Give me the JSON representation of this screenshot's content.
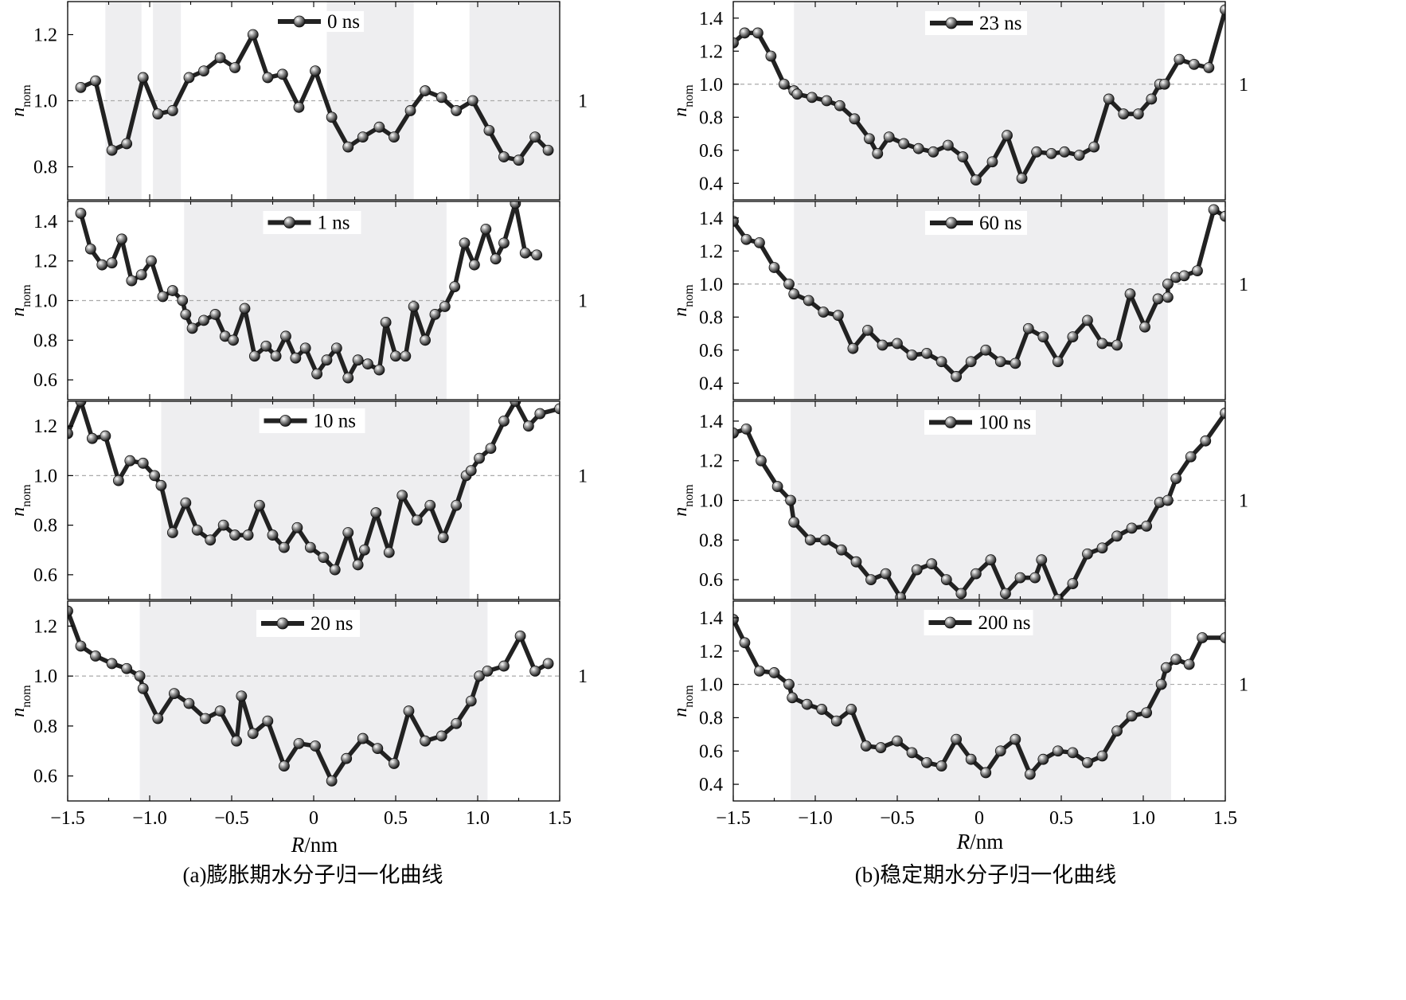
{
  "colors": {
    "line": "#222222",
    "shade": "#eeeef0",
    "reference": "#aaaaaa",
    "axis": "#000000"
  },
  "ref_label": "1",
  "ylabel_main": "n",
  "ylabel_sub": "nom",
  "columns": [
    {
      "caption": "(a)膨胀期水分子归一化曲线",
      "xlabel_italic": "R",
      "xlabel_unit": "/nm",
      "x_ticks": [
        "−1.5",
        "−1.0",
        "−0.5",
        "0",
        "0.5",
        "1.0",
        "1.5"
      ]
    },
    {
      "caption": "(b)稳定期水分子归一化曲线",
      "xlabel_italic": "R",
      "xlabel_unit": "/nm",
      "x_ticks": [
        "−1.5",
        "−1.0",
        "−0.5",
        "0",
        "0.5",
        "1.0",
        "1.5"
      ]
    }
  ],
  "chart_data": [
    {
      "type": "line",
      "column": 0,
      "row": 0,
      "legend": "0 ns",
      "xlim": [
        -1.5,
        1.5
      ],
      "ylim": [
        0.7,
        1.3
      ],
      "y_ticks": [
        0.8,
        1.0,
        1.2
      ],
      "y_tick_labels": [
        "0.8",
        "1.0",
        "1.2"
      ],
      "reference_y": 1.0,
      "shaded_x_ranges": [
        [
          -1.27,
          -1.05
        ],
        [
          -0.98,
          -0.81
        ],
        [
          0.08,
          0.61
        ],
        [
          0.95,
          1.5
        ]
      ],
      "x": [
        -1.42,
        -1.33,
        -1.23,
        -1.14,
        -1.04,
        -0.95,
        -0.86,
        -0.76,
        -0.67,
        -0.57,
        -0.48,
        -0.37,
        -0.28,
        -0.19,
        -0.09,
        0.01,
        0.11,
        0.21,
        0.3,
        0.4,
        0.49,
        0.59,
        0.68,
        0.78,
        0.87,
        0.97,
        1.07,
        1.16,
        1.25,
        1.35,
        1.43
      ],
      "y": [
        1.04,
        1.06,
        0.85,
        0.87,
        1.07,
        0.96,
        0.97,
        1.07,
        1.09,
        1.13,
        1.1,
        1.2,
        1.07,
        1.08,
        0.98,
        1.09,
        0.95,
        0.86,
        0.89,
        0.92,
        0.89,
        0.97,
        1.03,
        1.01,
        0.97,
        1.0,
        0.91,
        0.83,
        0.82,
        0.89,
        0.85
      ]
    },
    {
      "type": "line",
      "column": 0,
      "row": 1,
      "legend": "1 ns",
      "xlim": [
        -1.5,
        1.5
      ],
      "ylim": [
        0.5,
        1.5
      ],
      "y_ticks": [
        0.6,
        0.8,
        1.0,
        1.2,
        1.4
      ],
      "y_tick_labels": [
        "0.6",
        "0.8",
        "1.0",
        "1.2",
        "1.4"
      ],
      "reference_y": 1.0,
      "shaded_x_ranges": [
        [
          -0.79,
          0.81
        ]
      ],
      "x": [
        -1.42,
        -1.36,
        -1.29,
        -1.23,
        -1.17,
        -1.11,
        -1.05,
        -0.99,
        -0.92,
        -0.86,
        -0.8,
        -0.78,
        -0.74,
        -0.67,
        -0.6,
        -0.54,
        -0.49,
        -0.42,
        -0.36,
        -0.29,
        -0.23,
        -0.17,
        -0.11,
        -0.05,
        0.02,
        0.08,
        0.14,
        0.21,
        0.27,
        0.33,
        0.4,
        0.44,
        0.5,
        0.56,
        0.61,
        0.68,
        0.74,
        0.8,
        0.86,
        0.92,
        0.98,
        1.05,
        1.11,
        1.16,
        1.23,
        1.29,
        1.36
      ],
      "y": [
        1.44,
        1.26,
        1.18,
        1.19,
        1.31,
        1.1,
        1.13,
        1.2,
        1.02,
        1.05,
        1.0,
        0.93,
        0.86,
        0.9,
        0.93,
        0.82,
        0.8,
        0.96,
        0.72,
        0.77,
        0.72,
        0.82,
        0.71,
        0.76,
        0.63,
        0.7,
        0.76,
        0.61,
        0.7,
        0.68,
        0.65,
        0.89,
        0.72,
        0.72,
        0.97,
        0.8,
        0.93,
        0.97,
        1.07,
        1.29,
        1.18,
        1.36,
        1.21,
        1.29,
        1.49,
        1.24,
        1.23
      ]
    },
    {
      "type": "line",
      "column": 0,
      "row": 2,
      "legend": "10 ns",
      "xlim": [
        -1.5,
        1.5
      ],
      "ylim": [
        0.5,
        1.3
      ],
      "y_ticks": [
        0.6,
        0.8,
        1.0,
        1.2
      ],
      "y_tick_labels": [
        "0.6",
        "0.8",
        "1.0",
        "1.2"
      ],
      "reference_y": 1.0,
      "shaded_x_ranges": [
        [
          -0.93,
          0.95
        ]
      ],
      "x": [
        -1.5,
        -1.42,
        -1.35,
        -1.27,
        -1.19,
        -1.12,
        -1.04,
        -0.97,
        -0.93,
        -0.86,
        -0.78,
        -0.71,
        -0.63,
        -0.55,
        -0.48,
        -0.4,
        -0.33,
        -0.25,
        -0.18,
        -0.1,
        -0.02,
        0.06,
        0.13,
        0.21,
        0.27,
        0.31,
        0.38,
        0.46,
        0.54,
        0.63,
        0.71,
        0.79,
        0.87,
        0.93,
        0.96,
        1.01,
        1.08,
        1.16,
        1.23,
        1.31,
        1.38,
        1.5
      ],
      "y": [
        1.17,
        1.3,
        1.15,
        1.16,
        0.98,
        1.06,
        1.05,
        1.0,
        0.96,
        0.77,
        0.89,
        0.78,
        0.74,
        0.8,
        0.76,
        0.76,
        0.88,
        0.76,
        0.71,
        0.79,
        0.71,
        0.67,
        0.62,
        0.77,
        0.64,
        0.7,
        0.85,
        0.69,
        0.92,
        0.82,
        0.88,
        0.75,
        0.88,
        1.0,
        1.02,
        1.07,
        1.11,
        1.22,
        1.3,
        1.2,
        1.25,
        1.27
      ]
    },
    {
      "type": "line",
      "column": 0,
      "row": 3,
      "legend": "20 ns",
      "xlim": [
        -1.5,
        1.5
      ],
      "ylim": [
        0.5,
        1.3
      ],
      "y_ticks": [
        0.6,
        0.8,
        1.0,
        1.2
      ],
      "y_tick_labels": [
        "0.6",
        "0.8",
        "1.0",
        "1.2"
      ],
      "reference_y": 1.0,
      "shaded_x_ranges": [
        [
          -1.06,
          1.06
        ]
      ],
      "x": [
        -1.5,
        -1.42,
        -1.33,
        -1.23,
        -1.14,
        -1.06,
        -1.04,
        -0.95,
        -0.85,
        -0.76,
        -0.66,
        -0.57,
        -0.47,
        -0.44,
        -0.37,
        -0.28,
        -0.18,
        -0.09,
        0.01,
        0.11,
        0.2,
        0.3,
        0.39,
        0.49,
        0.58,
        0.68,
        0.78,
        0.87,
        0.96,
        1.01,
        1.06,
        1.16,
        1.26,
        1.35,
        1.43
      ],
      "y": [
        1.26,
        1.12,
        1.08,
        1.05,
        1.03,
        1.0,
        0.95,
        0.83,
        0.93,
        0.89,
        0.83,
        0.86,
        0.74,
        0.92,
        0.77,
        0.82,
        0.64,
        0.73,
        0.72,
        0.58,
        0.67,
        0.75,
        0.71,
        0.65,
        0.86,
        0.74,
        0.76,
        0.81,
        0.9,
        1.0,
        1.02,
        1.04,
        1.16,
        1.02,
        1.05
      ]
    },
    {
      "type": "line",
      "column": 1,
      "row": 0,
      "legend": "23 ns",
      "xlim": [
        -1.5,
        1.5
      ],
      "ylim": [
        0.3,
        1.5
      ],
      "y_ticks": [
        0.4,
        0.6,
        0.8,
        1.0,
        1.2,
        1.4
      ],
      "y_tick_labels": [
        "0.4",
        "0.6",
        "0.8",
        "1.0",
        "1.2",
        "1.4"
      ],
      "reference_y": 1.0,
      "shaded_x_ranges": [
        [
          -1.13,
          1.13
        ]
      ],
      "x": [
        -1.5,
        -1.43,
        -1.35,
        -1.27,
        -1.19,
        -1.13,
        -1.11,
        -1.02,
        -0.93,
        -0.85,
        -0.76,
        -0.67,
        -0.62,
        -0.55,
        -0.46,
        -0.37,
        -0.28,
        -0.19,
        -0.1,
        -0.02,
        0.08,
        0.17,
        0.26,
        0.35,
        0.44,
        0.52,
        0.61,
        0.7,
        0.79,
        0.88,
        0.97,
        1.05,
        1.1,
        1.13,
        1.22,
        1.31,
        1.4,
        1.5
      ],
      "y": [
        1.25,
        1.31,
        1.31,
        1.17,
        1.0,
        0.96,
        0.94,
        0.92,
        0.9,
        0.87,
        0.79,
        0.67,
        0.58,
        0.68,
        0.64,
        0.61,
        0.59,
        0.63,
        0.56,
        0.42,
        0.53,
        0.69,
        0.43,
        0.59,
        0.58,
        0.59,
        0.57,
        0.62,
        0.91,
        0.82,
        0.82,
        0.91,
        1.0,
        1.0,
        1.15,
        1.12,
        1.1,
        1.45
      ]
    },
    {
      "type": "line",
      "column": 1,
      "row": 1,
      "legend": "60 ns",
      "xlim": [
        -1.5,
        1.5
      ],
      "ylim": [
        0.3,
        1.5
      ],
      "y_ticks": [
        0.4,
        0.6,
        0.8,
        1.0,
        1.2,
        1.4
      ],
      "y_tick_labels": [
        "0.4",
        "0.6",
        "0.8",
        "1.0",
        "1.2",
        "1.4"
      ],
      "reference_y": 1.0,
      "shaded_x_ranges": [
        [
          -1.13,
          1.15
        ]
      ],
      "x": [
        -1.5,
        -1.42,
        -1.34,
        -1.25,
        -1.16,
        -1.13,
        -1.04,
        -0.95,
        -0.86,
        -0.77,
        -0.68,
        -0.59,
        -0.5,
        -0.41,
        -0.32,
        -0.23,
        -0.14,
        -0.05,
        0.04,
        0.13,
        0.22,
        0.3,
        0.39,
        0.48,
        0.57,
        0.66,
        0.75,
        0.84,
        0.92,
        1.01,
        1.09,
        1.15,
        1.15,
        1.2,
        1.25,
        1.33,
        1.43,
        1.5
      ],
      "y": [
        1.38,
        1.27,
        1.25,
        1.1,
        1.0,
        0.94,
        0.9,
        0.83,
        0.81,
        0.61,
        0.72,
        0.63,
        0.64,
        0.57,
        0.58,
        0.53,
        0.44,
        0.53,
        0.6,
        0.53,
        0.52,
        0.73,
        0.68,
        0.53,
        0.68,
        0.78,
        0.64,
        0.63,
        0.94,
        0.74,
        0.91,
        0.92,
        1.0,
        1.04,
        1.05,
        1.08,
        1.45,
        1.41
      ]
    },
    {
      "type": "line",
      "column": 1,
      "row": 2,
      "legend": "100 ns",
      "xlim": [
        -1.5,
        1.5
      ],
      "ylim": [
        0.5,
        1.5
      ],
      "y_ticks": [
        0.6,
        0.8,
        1.0,
        1.2,
        1.4
      ],
      "y_tick_labels": [
        "0.6",
        "0.8",
        "1.0",
        "1.2",
        "1.4"
      ],
      "reference_y": 1.0,
      "shaded_x_ranges": [
        [
          -1.15,
          1.15
        ]
      ],
      "x": [
        -1.5,
        -1.42,
        -1.33,
        -1.23,
        -1.15,
        -1.13,
        -1.03,
        -0.94,
        -0.84,
        -0.75,
        -0.66,
        -0.57,
        -0.48,
        -0.38,
        -0.29,
        -0.2,
        -0.11,
        -0.02,
        0.07,
        0.16,
        0.25,
        0.34,
        0.38,
        0.48,
        0.57,
        0.66,
        0.75,
        0.84,
        0.93,
        1.02,
        1.1,
        1.15,
        1.2,
        1.29,
        1.38,
        1.5
      ],
      "y": [
        1.34,
        1.36,
        1.2,
        1.07,
        1.0,
        0.89,
        0.8,
        0.8,
        0.75,
        0.69,
        0.6,
        0.63,
        0.51,
        0.65,
        0.68,
        0.6,
        0.53,
        0.63,
        0.7,
        0.53,
        0.61,
        0.61,
        0.7,
        0.5,
        0.58,
        0.73,
        0.76,
        0.82,
        0.86,
        0.87,
        0.99,
        1.0,
        1.11,
        1.22,
        1.3,
        1.44
      ]
    },
    {
      "type": "line",
      "column": 1,
      "row": 3,
      "legend": "200 ns",
      "xlim": [
        -1.5,
        1.5
      ],
      "ylim": [
        0.3,
        1.5
      ],
      "y_ticks": [
        0.4,
        0.6,
        0.8,
        1.0,
        1.2,
        1.4
      ],
      "y_tick_labels": [
        "0.4",
        "0.6",
        "0.8",
        "1.0",
        "1.2",
        "1.4"
      ],
      "reference_y": 1.0,
      "shaded_x_ranges": [
        [
          -1.15,
          1.17
        ]
      ],
      "x": [
        -1.5,
        -1.43,
        -1.34,
        -1.25,
        -1.16,
        -1.14,
        -1.05,
        -0.96,
        -0.87,
        -0.78,
        -0.69,
        -0.6,
        -0.5,
        -0.41,
        -0.32,
        -0.23,
        -0.14,
        -0.05,
        0.04,
        0.13,
        0.22,
        0.31,
        0.39,
        0.48,
        0.57,
        0.66,
        0.75,
        0.84,
        0.93,
        1.02,
        1.11,
        1.14,
        1.2,
        1.28,
        1.36,
        1.5
      ],
      "y": [
        1.39,
        1.25,
        1.08,
        1.07,
        1.0,
        0.92,
        0.88,
        0.85,
        0.78,
        0.85,
        0.63,
        0.62,
        0.66,
        0.59,
        0.53,
        0.51,
        0.67,
        0.55,
        0.47,
        0.6,
        0.67,
        0.46,
        0.55,
        0.6,
        0.59,
        0.53,
        0.57,
        0.72,
        0.81,
        0.83,
        1.0,
        1.1,
        1.15,
        1.12,
        1.28,
        1.28
      ]
    }
  ]
}
